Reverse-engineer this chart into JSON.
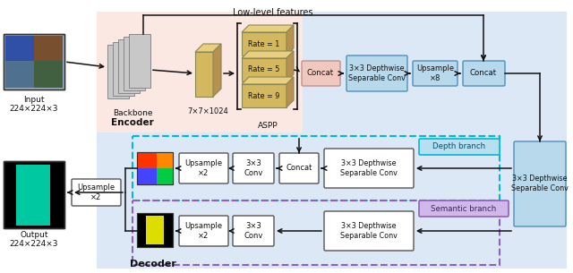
{
  "fig_width": 6.4,
  "fig_height": 3.05,
  "encoder_bg": "#fce8e2",
  "decoder_bg": "#dce8f5",
  "box_blue": "#b8d8ec",
  "box_pink": "#f0c8c0",
  "box_white": "#ffffff",
  "box_yellow_front": "#d4b860",
  "box_yellow_top": "#e8d080",
  "box_yellow_side": "#b89050",
  "box_depth_label": "#b8dff0",
  "box_sem_label": "#d0b8e8",
  "border_cyan": "#00b8d8",
  "border_purple": "#9060c0",
  "arrow_color": "#111111",
  "low_level_text": "Low-level features",
  "backbone_label": "Backbone",
  "encoder_label": "Encoder",
  "aspp_label": "ASPP",
  "decoder_label": "Decoder",
  "depth_branch_label": "Depth branch",
  "semantic_branch_label": "Semantic branch",
  "input_label": "Input\n224×224×3",
  "output_label": "Output\n224×224×3",
  "tensor_label": "7×7×1024",
  "aspp_rates": [
    "Rate = 1",
    "Rate = 5",
    "Rate = 9"
  ],
  "concat_enc_label": "Concat",
  "dsc_enc_label": "3×3 Depthwise\nSeparable Conv",
  "up8_label": "Upsample\n×8",
  "concat_enc2_label": "Concat",
  "dsc_right_label": "3×3 Depthwise\nSeparable Conv",
  "up2_left_label": "Upsample\n×2",
  "depth_up2_label": "Upsample\n×2",
  "depth_conv_label": "3×3\nConv",
  "depth_concat_label": "Concat",
  "depth_dsc_label": "3×3 Depthwise\nSeparable Conv",
  "sem_up2_label": "Upsample\n×2",
  "sem_conv_label": "3×3\nConv",
  "sem_dsc_label": "3×3 Depthwise\nSeparable Conv"
}
